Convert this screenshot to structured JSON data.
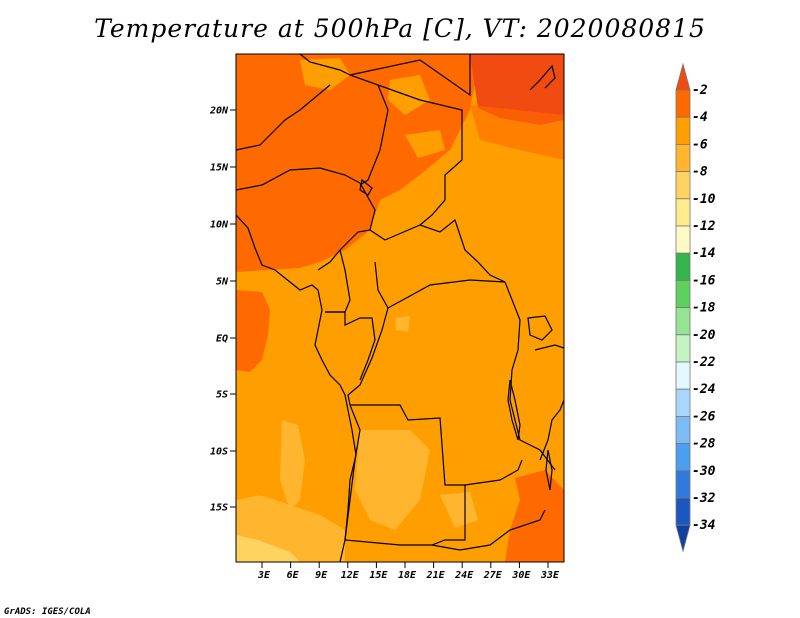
{
  "title": "Temperature at 500hPa [C], VT: 2020080815",
  "credit": "GrADS: IGES/COLA",
  "lat_labels": [
    "20N",
    "15N",
    "10N",
    "5N",
    "EQ",
    "5S",
    "10S",
    "15S"
  ],
  "lon_labels": [
    "3E",
    "6E",
    "9E",
    "12E",
    "15E",
    "18E",
    "21E",
    "24E",
    "27E",
    "30E",
    "33E"
  ],
  "colorbar": {
    "labels": [
      "-2",
      "-4",
      "-6",
      "-8",
      "-10",
      "-12",
      "-14",
      "-16",
      "-18",
      "-20",
      "-22",
      "-24",
      "-26",
      "-28",
      "-30",
      "-32",
      "-34"
    ],
    "top_arrow_color": "#f04b11",
    "bottom_arrow_color": "#e6e6fa",
    "colors": [
      "#ff6a00",
      "#ff9e00",
      "#ffb52d",
      "#ffd35f",
      "#ffea8c",
      "#fffac5",
      "#34b44a",
      "#5ed05e",
      "#94e494",
      "#c4f4c4",
      "#e6f8ff",
      "#aad6fb",
      "#7cbcf6",
      "#4c9ef0",
      "#2f78dc",
      "#1c56c0",
      "#1040a0",
      "#0a1c78"
    ]
  },
  "palette": {
    "deep": "#f04b11",
    "warm": "#ff6a00",
    "mid": "#ff9e00",
    "light": "#ffb52d",
    "pale": "#ffd35f"
  }
}
